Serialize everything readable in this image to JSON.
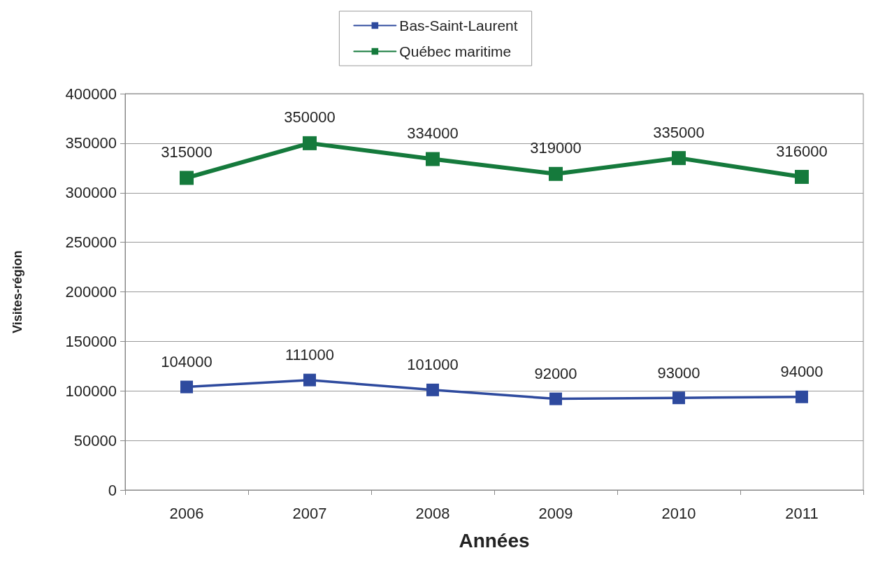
{
  "chart_data": {
    "type": "line",
    "xlabel": "Années",
    "ylabel": "Visites-région",
    "categories": [
      "2006",
      "2007",
      "2008",
      "2009",
      "2010",
      "2011"
    ],
    "series": [
      {
        "name": "Bas-Saint-Laurent",
        "color": "#2e4a9e",
        "values": [
          104000,
          111000,
          101000,
          92000,
          93000,
          94000
        ]
      },
      {
        "name": "Québec maritime",
        "color": "#157a3c",
        "values": [
          315000,
          350000,
          334000,
          319000,
          335000,
          316000
        ]
      }
    ],
    "ylim": [
      0,
      400000
    ],
    "yticks": [
      0,
      50000,
      100000,
      150000,
      200000,
      250000,
      300000,
      350000,
      400000
    ],
    "grid": "y",
    "legend": "top",
    "marker": "square",
    "data_labels": true
  }
}
